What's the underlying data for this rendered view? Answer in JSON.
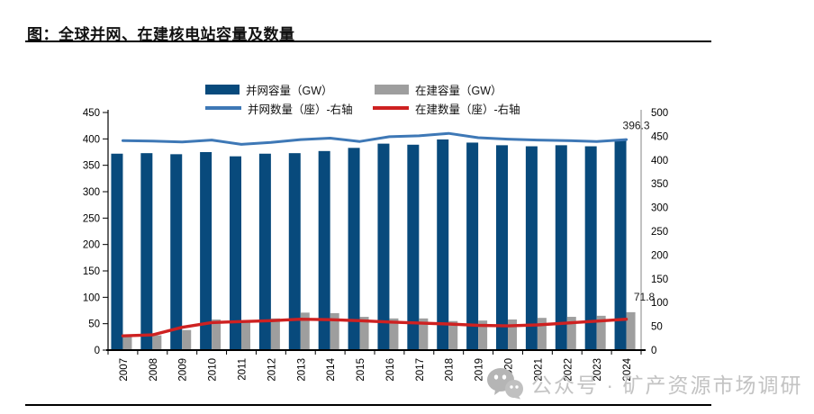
{
  "page": {
    "title": "图：全球并网、在建核电站容量及数量"
  },
  "legend": [
    {
      "label": "并网容量（GW）",
      "type": "rect",
      "color": "#084a7c"
    },
    {
      "label": "在建容量（GW）",
      "type": "rect",
      "color": "#9e9e9e"
    },
    {
      "label": "并网数量（座）-右轴",
      "type": "line",
      "color": "#3e78b6"
    },
    {
      "label": "在建数量（座）-右轴",
      "type": "line",
      "color": "#ce2121"
    }
  ],
  "watermark": {
    "icon": "wechat-icon",
    "text": "公众号 · 矿产资源市场调研"
  },
  "chart_data": {
    "type": "combo-bar-line",
    "title": "图：全球并网、在建核电站容量及数量",
    "categories": [
      "2007",
      "2008",
      "2009",
      "2010",
      "2011",
      "2012",
      "2013",
      "2014",
      "2015",
      "2016",
      "2017",
      "2018",
      "2019",
      "2020",
      "2021",
      "2022",
      "2023",
      "2024"
    ],
    "series": [
      {
        "name": "并网容量（GW）",
        "type": "bar",
        "axis": "left",
        "color": "#084a7c",
        "values": [
          372,
          373,
          371,
          375,
          367,
          372,
          373,
          377,
          383,
          391,
          389,
          399,
          393,
          388,
          386,
          388,
          386,
          396.3
        ]
      },
      {
        "name": "在建容量（GW）",
        "type": "bar",
        "axis": "left",
        "color": "#9e9e9e",
        "values": [
          27,
          28,
          38,
          58,
          55,
          60,
          71,
          70,
          63,
          60,
          60,
          55,
          56,
          58,
          61,
          63,
          65,
          71.8
        ]
      },
      {
        "name": "并网数量（座）-右轴",
        "type": "line",
        "axis": "right",
        "color": "#3e78b6",
        "values": [
          441,
          440,
          438,
          442,
          433,
          437,
          443,
          446,
          439,
          449,
          451,
          456,
          447,
          444,
          442,
          441,
          439,
          443
        ]
      },
      {
        "name": "在建数量（座）-右轴",
        "type": "line",
        "axis": "right",
        "color": "#ce2121",
        "values": [
          30,
          32,
          48,
          58,
          60,
          62,
          65,
          64,
          62,
          59,
          57,
          55,
          52,
          51,
          53,
          57,
          61,
          65
        ]
      }
    ],
    "left_axis": {
      "min": 0,
      "max": 450,
      "step": 50,
      "ticks": [
        "0",
        "50",
        "100",
        "150",
        "200",
        "250",
        "300",
        "350",
        "400",
        "450"
      ]
    },
    "right_axis": {
      "min": 0,
      "max": 500,
      "step": 50,
      "ticks": [
        "0",
        "50",
        "100",
        "150",
        "200",
        "250",
        "300",
        "350",
        "400",
        "450",
        "500"
      ]
    },
    "annotations": [
      {
        "text": "396.3",
        "category": "2024",
        "series": "并网容量（GW）"
      },
      {
        "text": "71.8",
        "category": "2024",
        "series": "在建容量（GW）"
      }
    ],
    "grid": false,
    "legend_position": "top"
  }
}
